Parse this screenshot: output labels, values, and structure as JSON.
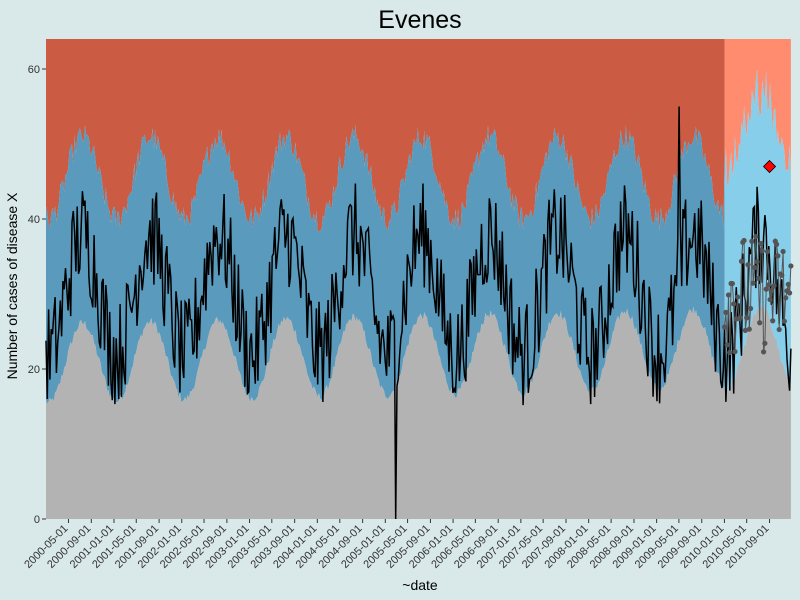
{
  "chart_data": {
    "type": "area",
    "title": "Evenes",
    "xlabel": "~date",
    "ylabel": "Number of cases of disease X",
    "x_range": [
      "2000-01-01",
      "2010-12-31"
    ],
    "forecast_start": "2010-01-01",
    "ylim": [
      0,
      64
    ],
    "y_ticks": [
      0,
      20,
      40,
      60
    ],
    "x_tick_labels": [
      "2000-05-01",
      "2000-09-01",
      "2001-01-01",
      "2001-05-01",
      "2001-09-01",
      "2002-01-01",
      "2002-05-01",
      "2002-09-01",
      "2003-01-01",
      "2003-05-01",
      "2003-09-01",
      "2004-01-01",
      "2004-05-01",
      "2004-09-01",
      "2005-01-01",
      "2005-05-01",
      "2005-09-01",
      "2006-01-01",
      "2006-05-01",
      "2006-09-01",
      "2007-01-01",
      "2007-05-01",
      "2007-09-01",
      "2008-01-01",
      "2008-05-01",
      "2008-09-01",
      "2009-01-01",
      "2009-05-01",
      "2009-09-01",
      "2010-01-01",
      "2010-05-01",
      "2010-09-01"
    ],
    "grid": false,
    "legend": "none",
    "series": [
      {
        "role": "baseline-lower-threshold",
        "description": "upper edge of grey band; seasonal, low in winter/high in summer",
        "color": "#b3b3b3",
        "annual_low": 15.5,
        "annual_high": 26,
        "trend_per_year": 0.4
      },
      {
        "role": "normal-range-upper-threshold",
        "description": "upper edge of blue band",
        "color": "#5a9bbd",
        "forecast_color": "#87ceeb",
        "annual_low": 40,
        "annual_high": 51,
        "peak_month": "July"
      },
      {
        "role": "alert-region",
        "description": "red region above the normal range",
        "color": "#cc5b43",
        "forecast_color": "#ff8c6f"
      },
      {
        "role": "observed-cases",
        "description": "black weekly observed count line",
        "color": "#000000",
        "typical_range": [
          15,
          55
        ],
        "notable_minimum": {
          "date": "2005-03-01",
          "value": 0
        },
        "notable_maximum": {
          "date": "2009-05-01",
          "value": 55
        }
      },
      {
        "role": "forecast-points",
        "description": "grey points during 2010",
        "color": "#555555",
        "range": [
          22,
          38
        ]
      }
    ],
    "outbreak_point": {
      "date": "2010-09-01",
      "value": 47,
      "color": "#ff0000",
      "shape": "diamond"
    }
  }
}
